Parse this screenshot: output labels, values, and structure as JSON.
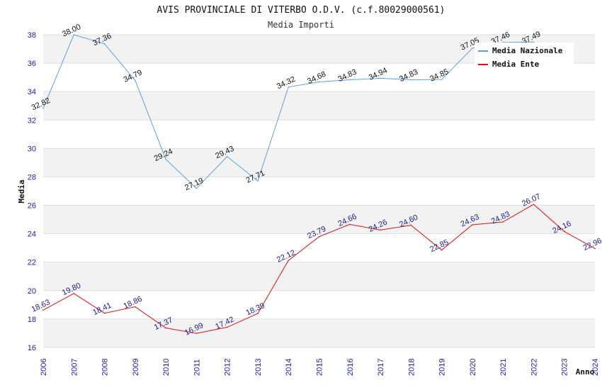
{
  "chart_data": {
    "type": "line",
    "title": "AVIS PROVINCIALE DI VITERBO O.D.V. (c.f.80029000561)",
    "subtitle": "Media Importi",
    "xlabel": "Anno",
    "ylabel": "Media",
    "ylim": [
      16,
      38
    ],
    "yticks": [
      16,
      18,
      20,
      22,
      24,
      26,
      28,
      30,
      32,
      34,
      36,
      38
    ],
    "x": [
      "2006",
      "2007",
      "2008",
      "2009",
      "2010",
      "2011",
      "2012",
      "2013",
      "2014",
      "2015",
      "2016",
      "2017",
      "2018",
      "2019",
      "2020",
      "2021",
      "2022",
      "2023",
      "2024"
    ],
    "grid": "horizontal bands",
    "legend_position": "top-right",
    "series": [
      {
        "name": "Media Nazionale",
        "color": "#5aa0e0",
        "values": [
          32.82,
          38.0,
          37.36,
          34.79,
          29.24,
          27.19,
          29.43,
          27.71,
          34.32,
          34.68,
          34.83,
          34.94,
          34.83,
          34.85,
          37.05,
          37.46,
          37.49,
          null,
          null
        ],
        "labels": [
          "32.82",
          "38.00",
          "37.36",
          "34.79",
          "29.24",
          "27.19",
          "29.43",
          "27.71",
          "34.32",
          "34.68",
          "34.83",
          "34.94",
          "34.83",
          "34.85",
          "37.05",
          "37.46",
          "37.49",
          "",
          ""
        ]
      },
      {
        "name": "Media Ente",
        "color": "#e01010",
        "values": [
          18.63,
          19.8,
          18.41,
          18.86,
          17.37,
          16.99,
          17.42,
          18.39,
          22.12,
          23.79,
          24.66,
          24.26,
          24.6,
          22.85,
          24.63,
          24.83,
          26.07,
          24.16,
          22.96
        ],
        "labels": [
          "18.63",
          "19.80",
          "18.41",
          "18.86",
          "17.37",
          "16.99",
          "17.42",
          "18.39",
          "22.12",
          "23.79",
          "24.66",
          "24.26",
          "24.60",
          "22.85",
          "24.63",
          "24.83",
          "26.07",
          "24.16",
          "22.96"
        ]
      }
    ]
  }
}
